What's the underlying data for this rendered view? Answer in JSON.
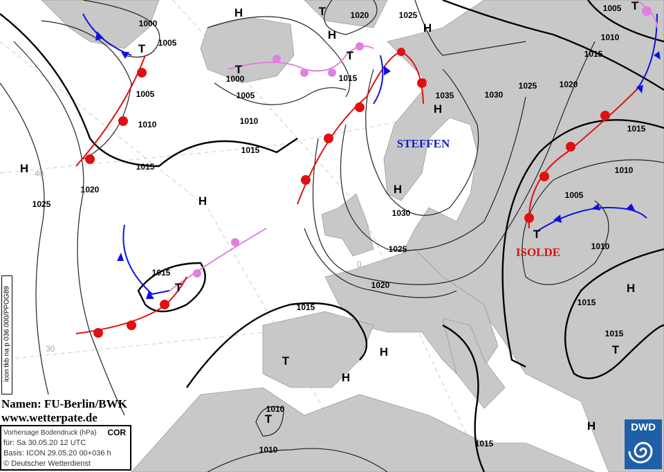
{
  "map": {
    "credit_line1": "Namen: FU-Berlin/BWK",
    "credit_line2": "www.wetterpate.de",
    "side_label": "icon tkb na p 036 000/PPOG89",
    "info": {
      "title": "Vorhersage Bodendruck (hPa)",
      "flag": "COR",
      "valid": "für:  Sa 30.05.20  12 UTC",
      "basis": "Basis: ICON  29.05.20 00+036 h",
      "copyright": "© Deutscher Wetterdienst"
    },
    "logo": "DWD",
    "lows_highs": [
      "H",
      "T",
      "H",
      "H",
      "T",
      "T",
      "T",
      "H",
      "H",
      "H",
      "H",
      "T",
      "T",
      "H",
      "H",
      "T",
      "H",
      "H",
      "T",
      "T",
      "T"
    ],
    "isobar_labels": [
      "1000",
      "1005",
      "1005",
      "1010",
      "1015",
      "1020",
      "1025",
      "1000",
      "1005",
      "1010",
      "1015",
      "1020",
      "1025",
      "1015",
      "1035",
      "1030",
      "1025",
      "1020",
      "1015",
      "1010",
      "1005",
      "1010",
      "1015",
      "1015",
      "1005",
      "1010",
      "1015",
      "1030",
      "1025",
      "1020",
      "1015",
      "1015",
      "1010",
      "1010",
      "1015"
    ],
    "system_names": [
      {
        "name": "STEFFEN",
        "color": "#1a1acc"
      },
      {
        "name": "ISOLDE",
        "color": "#dd1111"
      }
    ],
    "graticule_labels": [
      "40",
      "30",
      "0"
    ],
    "colors": {
      "warm_front": "#e01010",
      "cold_front": "#1010e0",
      "occlusion": "#e080e0",
      "land": "#c8c8c8"
    }
  }
}
